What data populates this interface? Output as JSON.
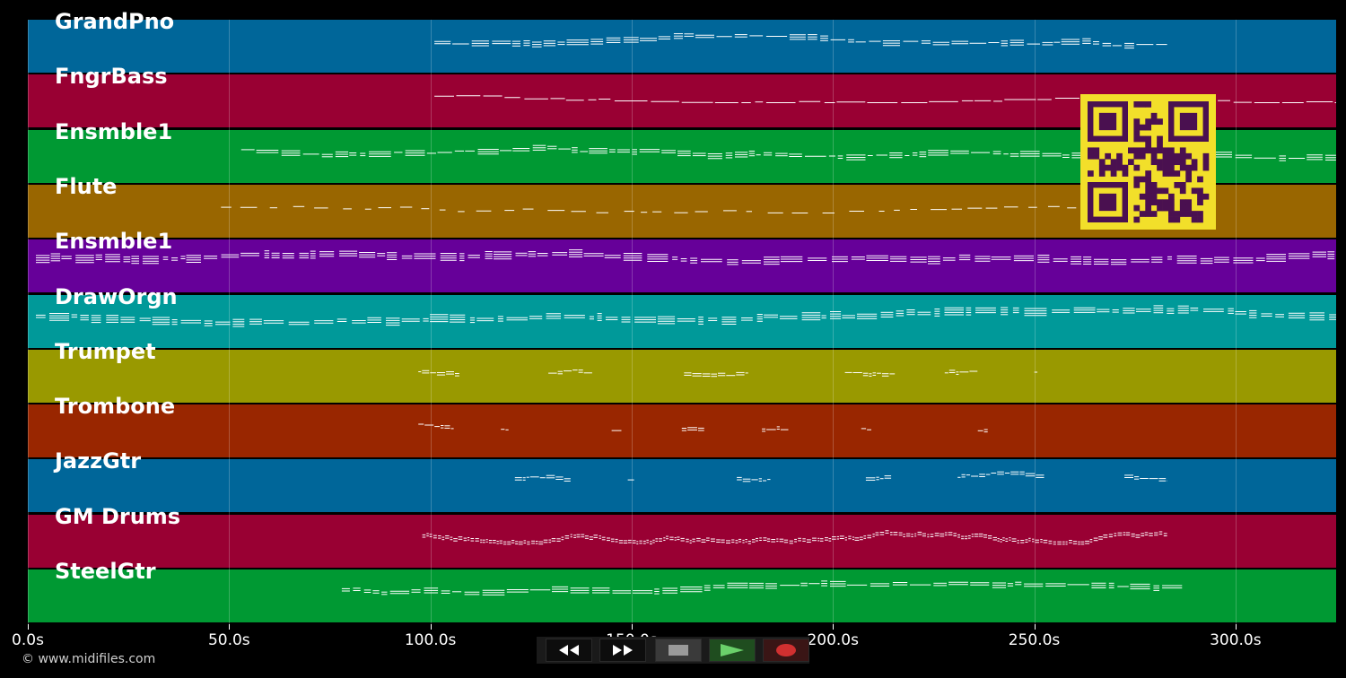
{
  "tracks": [
    {
      "name": "GrandPno",
      "color": "#006699",
      "start": 101,
      "end": 283,
      "style": "dense"
    },
    {
      "name": "FngrBass",
      "color": "#990033",
      "start": 101,
      "end": 325,
      "style": "line"
    },
    {
      "name": "Ensmble1",
      "color": "#009933",
      "start": 53,
      "end": 325,
      "style": "dense"
    },
    {
      "name": "Flute",
      "color": "#996600",
      "start": 48,
      "end": 268,
      "style": "sparse"
    },
    {
      "name": "Ensmble1",
      "color": "#660099",
      "start": 2,
      "end": 325,
      "style": "chord"
    },
    {
      "name": "DrawOrgn",
      "color": "#009999",
      "start": 2,
      "end": 325,
      "style": "chord"
    },
    {
      "name": "Trumpet",
      "color": "#999900",
      "start": 97,
      "end": 263,
      "style": "bursts"
    },
    {
      "name": "Trombone",
      "color": "#992600",
      "start": 97,
      "end": 263,
      "style": "bursts"
    },
    {
      "name": "JazzGtr",
      "color": "#006699",
      "start": 121,
      "end": 283,
      "style": "bursts"
    },
    {
      "name": "GM Drums",
      "color": "#990033",
      "start": 98,
      "end": 283,
      "style": "drums"
    },
    {
      "name": "SteelGtr",
      "color": "#009933",
      "start": 78,
      "end": 287,
      "style": "dense"
    }
  ],
  "timeline": {
    "max_seconds": 325,
    "ticks": [
      "0.0s",
      "50.0s",
      "100.0s",
      "150.0s",
      "200.0s",
      "250.0s",
      "300.0s"
    ],
    "tick_values": [
      0,
      50,
      100,
      150,
      200,
      250,
      300
    ]
  },
  "copyright": "© www.midifiles.com",
  "transport": {
    "buttons": [
      "rewind",
      "fast-forward",
      "stop",
      "play",
      "record"
    ]
  },
  "colors": {
    "qr_bg": "#f2df2a",
    "qr_fg": "#4a1050",
    "play": "#3a9a3a",
    "record": "#d03030"
  }
}
